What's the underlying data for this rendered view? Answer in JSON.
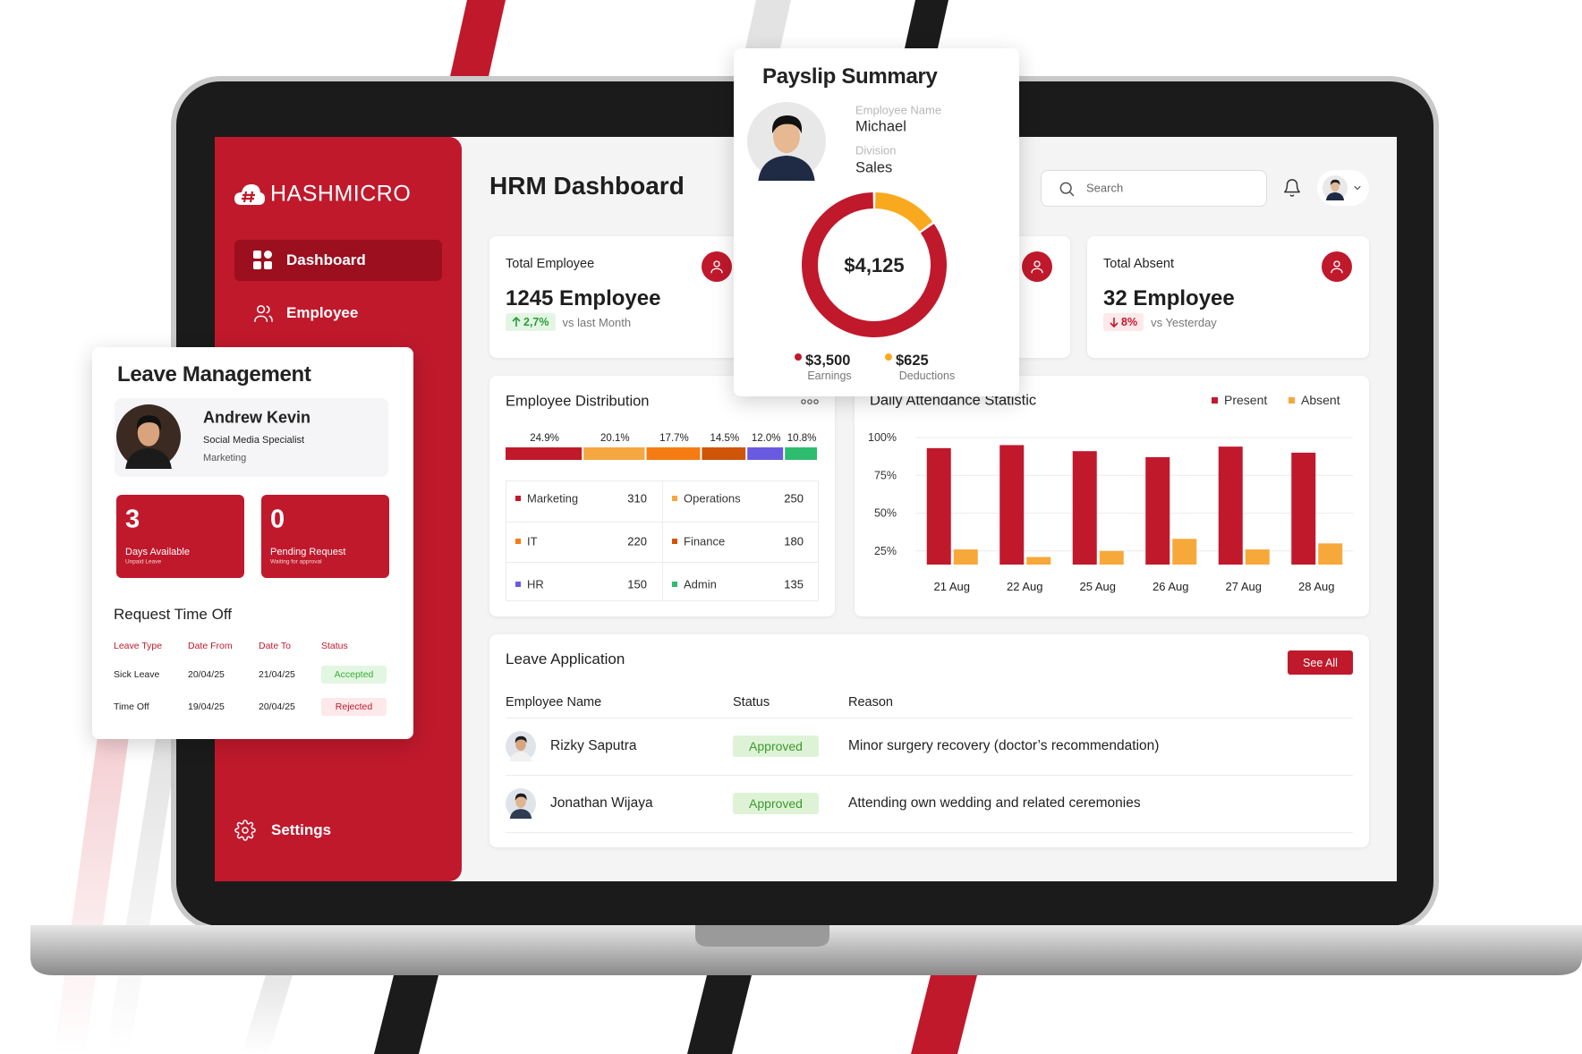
{
  "sidebar": {
    "brand": "HASHMICRO",
    "nav": [
      "Dashboard",
      "Employee"
    ],
    "settings": "Settings"
  },
  "header": {
    "title": "HRM Dashboard",
    "search_placeholder": "Search"
  },
  "stats": [
    {
      "label": "Total Employee",
      "value": "1245 Employee",
      "change": "2,7%",
      "comparison": "vs last Month",
      "trend": "up"
    },
    {
      "label": "Total Absent",
      "value": "32 Employee",
      "change": "8%",
      "comparison": "vs Yesterday",
      "trend": "down"
    }
  ],
  "distribution": {
    "type": "bar",
    "title": "Employee Distribution",
    "categories": [
      "Marketing",
      "Operations",
      "IT",
      "Finance",
      "HR",
      "Admin"
    ],
    "counts": [
      310,
      250,
      220,
      180,
      150,
      135
    ],
    "values": [
      24.9,
      20.1,
      17.7,
      14.5,
      12.0,
      10.8
    ],
    "value_labels": [
      "24.9%",
      "20.1%",
      "17.7%",
      "14.5%",
      "12.0%",
      "10.8%"
    ],
    "colors": [
      "#c0192c",
      "#f5a742",
      "#f57c12",
      "#cf5509",
      "#6a5ae0",
      "#2ebc6e"
    ]
  },
  "attendance": {
    "type": "bar",
    "title": "Daily Attendance Statistic",
    "categories": [
      "21 Aug",
      "22 Aug",
      "25 Aug",
      "26 Aug",
      "27 Aug",
      "28 Aug"
    ],
    "series": [
      {
        "name": "Present",
        "color": "#c0192c",
        "values": [
          93,
          95,
          91,
          87,
          94,
          90
        ]
      },
      {
        "name": "Absent",
        "color": "#f7a83a",
        "values": [
          26,
          21,
          25,
          33,
          26,
          30
        ]
      }
    ],
    "ylim": [
      16,
      100
    ],
    "yticks": [
      {
        "value": 25,
        "label": "25%"
      },
      {
        "value": 50,
        "label": "50%"
      },
      {
        "value": 75,
        "label": "75%"
      },
      {
        "value": 100,
        "label": "100%"
      }
    ],
    "grid": true,
    "legend": "top-right"
  },
  "payslip": {
    "type": "pie",
    "title": "Payslip Summary",
    "fields": [
      {
        "label": "Employee Name",
        "value": "Michael"
      },
      {
        "label": "Division",
        "value": "Sales"
      }
    ],
    "total": "$4,125",
    "categories": [
      "Earnings",
      "Deductions"
    ],
    "values": [
      3500,
      625
    ],
    "value_labels": [
      "$3,500",
      "$625"
    ],
    "colors": [
      "#c0192c",
      "#f9a91e"
    ]
  },
  "leave_management": {
    "title": "Leave Management",
    "employee": {
      "name": "Andrew Kevin",
      "role": "Social Media Specialist",
      "department": "Marketing"
    },
    "balances": [
      {
        "value": 3,
        "label": "Days Available",
        "note": "Unpaid Leave"
      },
      {
        "value": 0,
        "label": "Pending Request",
        "note": "Waiting for approval"
      }
    ],
    "requests": {
      "title": "Request Time Off",
      "columns": [
        "Leave Type",
        "Date From",
        "Date To",
        "Status"
      ],
      "rows": [
        [
          "Sick Leave",
          "20/04/25",
          "21/04/25",
          "Accepted"
        ],
        [
          "Time Off",
          "19/04/25",
          "20/04/25",
          "Rejected"
        ]
      ]
    }
  },
  "leave_applications": {
    "title": "Leave Application",
    "action": "See All",
    "columns": [
      "Employee Name",
      "Status",
      "Reason"
    ],
    "rows": [
      {
        "name": "Rizky Saputra",
        "status": "Approved",
        "reason": "Minor surgery recovery (doctor’s recommendation)"
      },
      {
        "name": "Jonathan Wijaya",
        "status": "Approved",
        "reason": "Attending own wedding and related ceremonies"
      }
    ]
  }
}
